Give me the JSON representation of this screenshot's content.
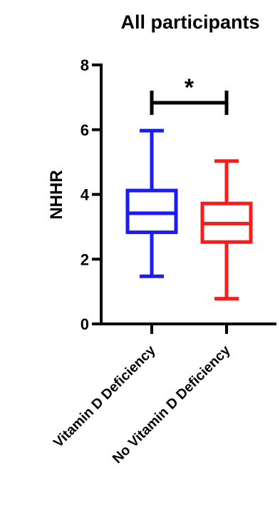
{
  "chart_data": {
    "type": "box",
    "title": "All participants",
    "xlabel": "",
    "ylabel": "NHHR",
    "ylim": [
      0,
      8
    ],
    "yticks": [
      0,
      2,
      4,
      6,
      8
    ],
    "grid": false,
    "legend": "none",
    "categories": [
      "Vitamin D Deficiency",
      "No Vitamin D Deficiency"
    ],
    "series": [
      {
        "category": "Vitamin D Deficiency",
        "color": "#1a1aff",
        "min": 1.47,
        "q1": 2.83,
        "median": 3.42,
        "q3": 4.12,
        "max": 5.97
      },
      {
        "category": "No Vitamin D Deficiency",
        "color": "#ff1a1a",
        "min": 0.78,
        "q1": 2.53,
        "median": 3.1,
        "q3": 3.72,
        "max": 5.03
      }
    ],
    "annotations": [
      {
        "type": "significance-bracket",
        "from": 0,
        "to": 1,
        "label": "*"
      }
    ]
  }
}
